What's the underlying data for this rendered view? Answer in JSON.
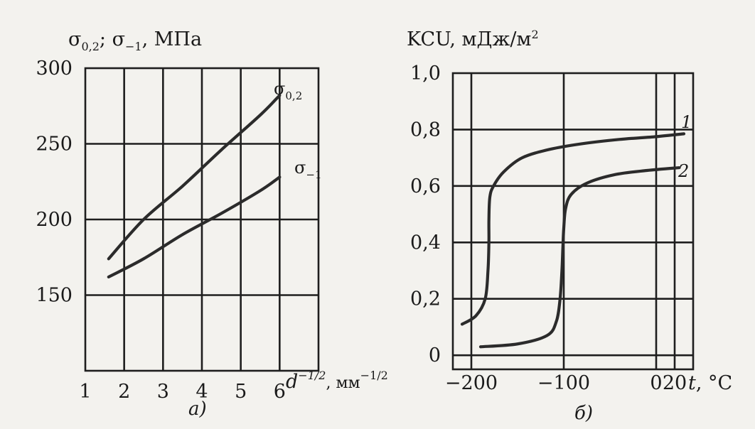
{
  "chart_data": [
    {
      "type": "line",
      "subplot_caption": "а)",
      "ylabel": "σ0,2; σ−1, МПа",
      "xlabel": "d^−1/2, мм^−1/2",
      "xlim": [
        1,
        7
      ],
      "ylim": [
        100,
        300
      ],
      "grid": true,
      "x_ticks": [
        1,
        2,
        3,
        4,
        5,
        6
      ],
      "x_tick_labels": [
        "1",
        "2",
        "3",
        "4",
        "5",
        "6"
      ],
      "y_ticks": [
        150,
        200,
        250,
        300
      ],
      "y_tick_labels": [
        "150",
        "200",
        "250",
        "300"
      ],
      "series": [
        {
          "name": "σ0,2",
          "x": [
            1.6,
            2.5,
            3.5,
            4.5,
            5.5,
            6.0
          ],
          "y": [
            174,
            200,
            222,
            246,
            269,
            282
          ]
        },
        {
          "name": "σ−1",
          "x": [
            1.6,
            2.5,
            3.5,
            4.5,
            5.5,
            6.0
          ],
          "y": [
            162,
            174,
            190,
            204,
            219,
            228
          ]
        }
      ]
    },
    {
      "type": "line",
      "subplot_caption": "б)",
      "ylabel": "KCU, мДж/м²",
      "xlabel": "t, °C",
      "xlim": [
        -220,
        40
      ],
      "ylim": [
        -0.05,
        1.0
      ],
      "grid": true,
      "x_ticks": [
        -200,
        -100,
        0,
        20
      ],
      "x_tick_labels": [
        "−200",
        "−100",
        "0",
        "20"
      ],
      "y_ticks": [
        0,
        0.2,
        0.4,
        0.6,
        0.8,
        1.0
      ],
      "y_tick_labels": [
        "0",
        "0,2",
        "0,4",
        "0,6",
        "0,8",
        "1,0"
      ],
      "series": [
        {
          "name": "1",
          "x": [
            -210,
            -195,
            -185,
            -182,
            -181,
            -181,
            -180,
            -176,
            -165,
            -145,
            -115,
            -80,
            -40,
            0,
            30
          ],
          "y": [
            0.11,
            0.14,
            0.2,
            0.3,
            0.4,
            0.48,
            0.56,
            0.6,
            0.65,
            0.7,
            0.73,
            0.75,
            0.765,
            0.775,
            0.785
          ]
        },
        {
          "name": "2",
          "x": [
            -190,
            -150,
            -118,
            -108,
            -104,
            -102,
            -101,
            -100,
            -98,
            -92,
            -75,
            -45,
            -10,
            25
          ],
          "y": [
            0.03,
            0.04,
            0.07,
            0.12,
            0.2,
            0.3,
            0.38,
            0.45,
            0.52,
            0.57,
            0.61,
            0.64,
            0.655,
            0.665
          ]
        }
      ]
    }
  ]
}
